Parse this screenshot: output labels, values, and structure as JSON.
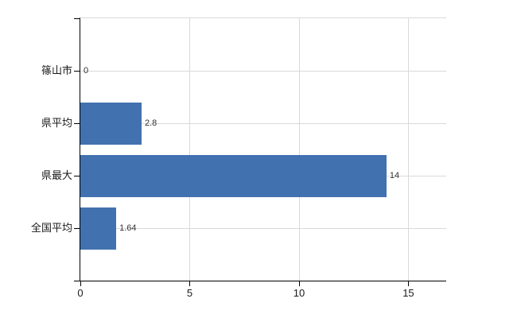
{
  "chart_data": {
    "type": "bar",
    "orientation": "horizontal",
    "title": "",
    "xlabel": "",
    "ylabel": "",
    "categories": [
      "篠山市",
      "県平均",
      "県最大",
      "全国平均"
    ],
    "values": [
      0,
      2.8,
      14,
      1.64
    ],
    "value_labels": [
      "0",
      "2.8",
      "14",
      "1.64"
    ],
    "xticks": [
      0,
      5,
      10,
      15
    ],
    "xtick_labels": [
      "0",
      "5",
      "10",
      "15"
    ],
    "xlim": [
      0,
      16.73
    ],
    "grid": true,
    "legend": false,
    "colors": {
      "bar": "#4271b0",
      "gridline": "#d9d9d9",
      "axis": "#000000",
      "value_label": "#333333",
      "tick_label": "#1a1a1a",
      "background": "#ffffff"
    }
  }
}
